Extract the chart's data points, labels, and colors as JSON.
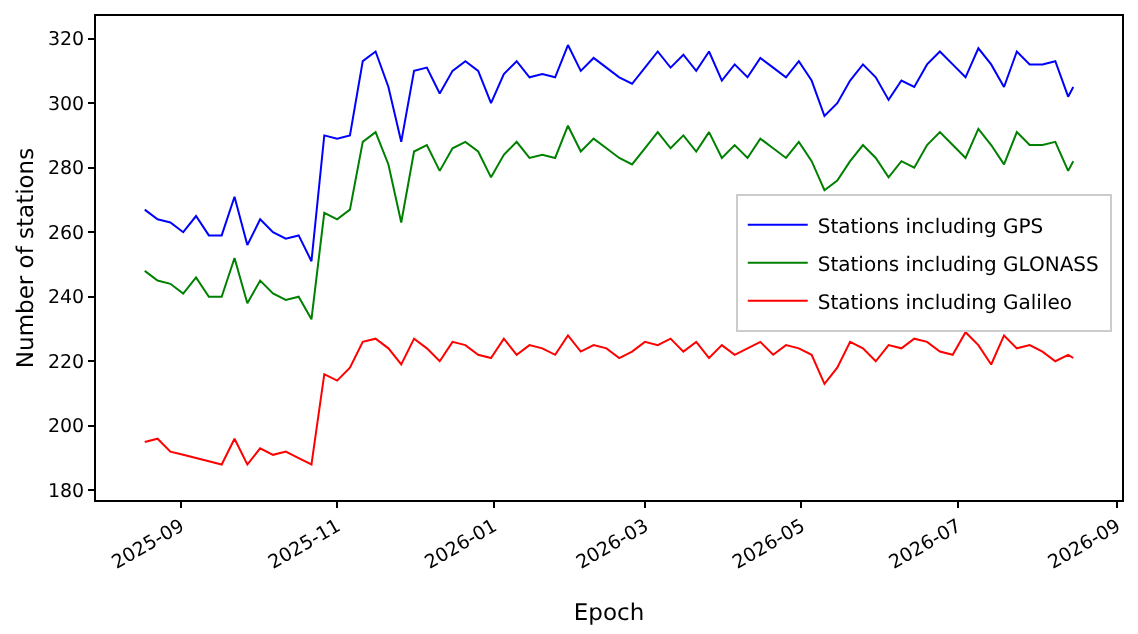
{
  "chart_data": {
    "type": "line",
    "xlabel": "Epoch",
    "ylabel": "Number of stations",
    "x": [
      "2025-08-18",
      "2025-08-23",
      "2025-08-28",
      "2025-09-02",
      "2025-09-07",
      "2025-09-12",
      "2025-09-17",
      "2025-09-22",
      "2025-09-27",
      "2025-10-02",
      "2025-10-07",
      "2025-10-12",
      "2025-10-17",
      "2025-10-22",
      "2025-10-27",
      "2025-11-01",
      "2025-11-06",
      "2025-11-11",
      "2025-11-16",
      "2025-11-21",
      "2025-11-26",
      "2025-12-01",
      "2025-12-06",
      "2025-12-11",
      "2025-12-16",
      "2025-12-21",
      "2025-12-26",
      "2025-12-31",
      "2026-01-05",
      "2026-01-10",
      "2026-01-15",
      "2026-01-20",
      "2026-01-25",
      "2026-01-30",
      "2026-02-04",
      "2026-02-09",
      "2026-02-14",
      "2026-02-19",
      "2026-02-24",
      "2026-03-01",
      "2026-03-06",
      "2026-03-11",
      "2026-03-16",
      "2026-03-21",
      "2026-03-26",
      "2026-03-31",
      "2026-04-05",
      "2026-04-10",
      "2026-04-15",
      "2026-04-20",
      "2026-04-25",
      "2026-04-30",
      "2026-05-05",
      "2026-05-10",
      "2026-05-15",
      "2026-05-20",
      "2026-05-25",
      "2026-05-30",
      "2026-06-04",
      "2026-06-09",
      "2026-06-14",
      "2026-06-19",
      "2026-06-24",
      "2026-06-29",
      "2026-07-04",
      "2026-07-09",
      "2026-07-14",
      "2026-07-19",
      "2026-07-24",
      "2026-07-29",
      "2026-08-03",
      "2026-08-08",
      "2026-08-13",
      "2026-08-15"
    ],
    "series": [
      {
        "name": "Stations including GPS",
        "color": "#0000ff",
        "values": [
          267,
          264,
          263,
          260,
          265,
          259,
          259,
          271,
          256,
          264,
          260,
          258,
          259,
          251,
          290,
          289,
          290,
          313,
          316,
          305,
          288,
          310,
          311,
          303,
          310,
          313,
          310,
          300,
          309,
          313,
          308,
          309,
          308,
          318,
          310,
          314,
          311,
          308,
          306,
          311,
          316,
          311,
          315,
          310,
          316,
          307,
          312,
          308,
          314,
          311,
          308,
          313,
          307,
          296,
          300,
          307,
          312,
          308,
          301,
          307,
          305,
          312,
          316,
          312,
          308,
          317,
          312,
          305,
          316,
          312,
          312,
          313,
          302,
          305
        ]
      },
      {
        "name": "Stations including GLONASS",
        "color": "#008000",
        "values": [
          248,
          245,
          244,
          241,
          246,
          240,
          240,
          252,
          238,
          245,
          241,
          239,
          240,
          233,
          266,
          264,
          267,
          288,
          291,
          281,
          263,
          285,
          287,
          279,
          286,
          288,
          285,
          277,
          284,
          288,
          283,
          284,
          283,
          293,
          285,
          289,
          286,
          283,
          281,
          286,
          291,
          286,
          290,
          285,
          291,
          283,
          287,
          283,
          289,
          286,
          283,
          288,
          282,
          273,
          276,
          282,
          287,
          283,
          277,
          282,
          280,
          287,
          291,
          287,
          283,
          292,
          287,
          281,
          291,
          287,
          287,
          288,
          279,
          282
        ]
      },
      {
        "name": "Stations including Galileo",
        "color": "#ff0000",
        "values": [
          195,
          196,
          192,
          191,
          190,
          189,
          188,
          196,
          188,
          193,
          191,
          192,
          190,
          188,
          216,
          214,
          218,
          226,
          227,
          224,
          219,
          227,
          224,
          220,
          226,
          225,
          222,
          221,
          227,
          222,
          225,
          224,
          222,
          228,
          223,
          225,
          224,
          221,
          223,
          226,
          225,
          227,
          223,
          226,
          221,
          225,
          222,
          224,
          226,
          222,
          225,
          224,
          222,
          213,
          218,
          226,
          224,
          220,
          225,
          224,
          227,
          226,
          223,
          222,
          229,
          225,
          219,
          228,
          224,
          225,
          223,
          220,
          222,
          221
        ]
      }
    ],
    "xlim": [
      "2025-07-30",
      "2026-09-03"
    ],
    "xticks": [
      {
        "value": "2025-09-01",
        "label": "2025-09"
      },
      {
        "value": "2025-11-01",
        "label": "2025-11"
      },
      {
        "value": "2026-01-01",
        "label": "2026-01"
      },
      {
        "value": "2026-03-01",
        "label": "2026-03"
      },
      {
        "value": "2026-05-01",
        "label": "2026-05"
      },
      {
        "value": "2026-07-01",
        "label": "2026-07"
      },
      {
        "value": "2026-09-01",
        "label": "2026-09"
      }
    ],
    "ylim": [
      177,
      327
    ],
    "yticks": [
      180,
      200,
      220,
      240,
      260,
      280,
      300,
      320
    ],
    "legend": "right",
    "marker": "none",
    "line_style": "solid"
  }
}
